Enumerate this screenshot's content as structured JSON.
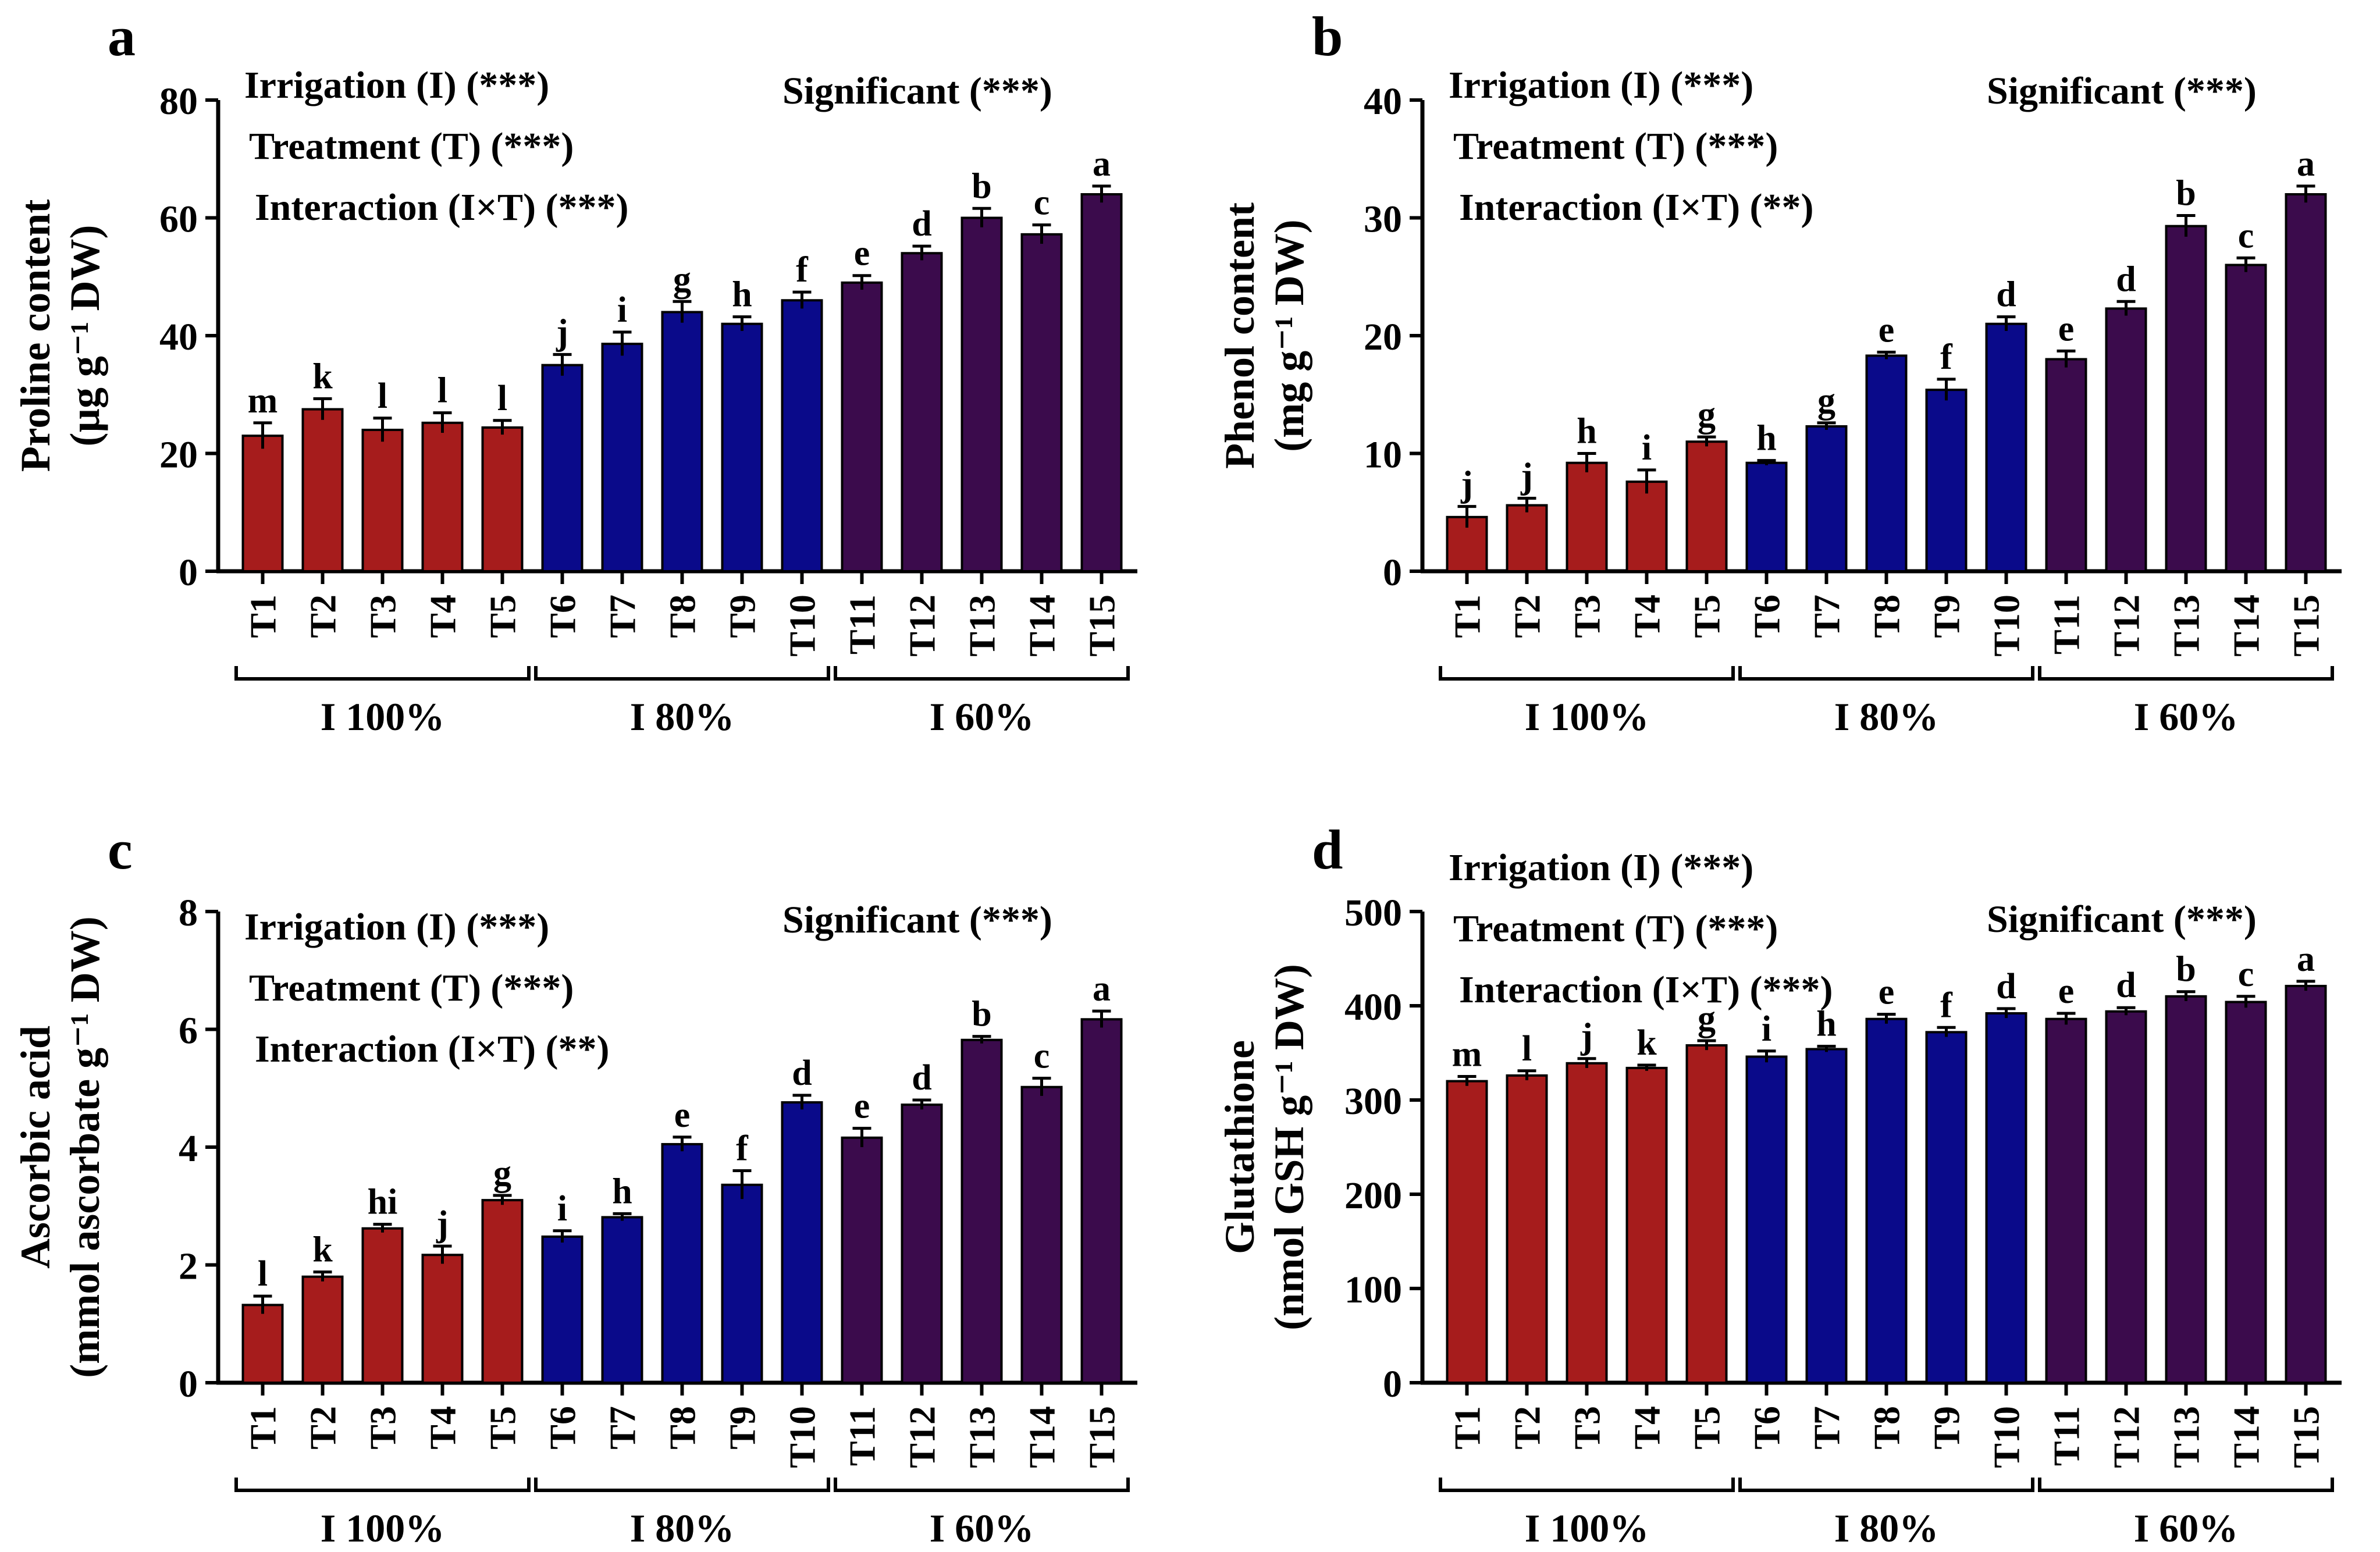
{
  "colors": {
    "red": "#A61C1C",
    "blue": "#0A0A8A",
    "purple": "#3B0B4C",
    "axis": "#000000"
  },
  "chart_data": [
    {
      "panel_label": "a",
      "type": "bar",
      "ylabel_line1": "Proline content",
      "ylabel_line2": "(µg g⁻¹ DW)",
      "ylim": [
        0,
        80
      ],
      "yticks": [
        0,
        20,
        40,
        60,
        80
      ],
      "categories": [
        "T1",
        "T2",
        "T3",
        "T4",
        "T5",
        "T6",
        "T7",
        "T8",
        "T9",
        "T10",
        "T11",
        "T12",
        "T13",
        "T14",
        "T15"
      ],
      "values": [
        23,
        27.5,
        24,
        25.2,
        24.4,
        35,
        38.6,
        44,
        42,
        46,
        49,
        54,
        60,
        57.2,
        64
      ],
      "errors": [
        2.2,
        1.8,
        2.0,
        1.7,
        1.2,
        1.8,
        2.0,
        1.8,
        1.2,
        1.4,
        1.2,
        1.2,
        1.6,
        1.6,
        1.4
      ],
      "letters": [
        "m",
        "k",
        "l",
        "l",
        "l",
        "j",
        "i",
        "g",
        "h",
        "f",
        "e",
        "d",
        "b",
        "c",
        "a"
      ],
      "groups": [
        {
          "label": "I 100%",
          "start": 0,
          "end": 4,
          "color_key": "red"
        },
        {
          "label": "I 80%",
          "start": 5,
          "end": 9,
          "color_key": "blue"
        },
        {
          "label": "I 60%",
          "start": 10,
          "end": 14,
          "color_key": "purple"
        }
      ],
      "annotations_left": [
        "Irrigation (I) (***)",
        "Treatment (T) (***)",
        "Interaction (I×T) (***)"
      ],
      "annotation_right": "Significant (***)"
    },
    {
      "panel_label": "b",
      "type": "bar",
      "ylabel_line1": "Phenol content",
      "ylabel_line2": "(mg g⁻¹ DW)",
      "ylim": [
        0,
        40
      ],
      "yticks": [
        0,
        10,
        20,
        30,
        40
      ],
      "categories": [
        "T1",
        "T2",
        "T3",
        "T4",
        "T5",
        "T6",
        "T7",
        "T8",
        "T9",
        "T10",
        "T11",
        "T12",
        "T13",
        "T14",
        "T15"
      ],
      "values": [
        4.6,
        5.6,
        9.2,
        7.6,
        11,
        9.2,
        12.3,
        18.3,
        15.4,
        21,
        18,
        22.3,
        29.3,
        26,
        32
      ],
      "errors": [
        0.9,
        0.6,
        0.8,
        1.0,
        0.4,
        0.2,
        0.3,
        0.3,
        0.9,
        0.6,
        0.7,
        0.6,
        0.9,
        0.6,
        0.7
      ],
      "letters": [
        "j",
        "j",
        "h",
        "i",
        "g",
        "h",
        "g",
        "e",
        "f",
        "d",
        "e",
        "d",
        "b",
        "c",
        "a"
      ],
      "groups": [
        {
          "label": "I 100%",
          "start": 0,
          "end": 4,
          "color_key": "red"
        },
        {
          "label": "I 80%",
          "start": 5,
          "end": 9,
          "color_key": "blue"
        },
        {
          "label": "I 60%",
          "start": 10,
          "end": 14,
          "color_key": "purple"
        }
      ],
      "annotations_left": [
        "Irrigation (I) (***)",
        "Treatment (T) (***)",
        "Interaction (I×T) (**)"
      ],
      "annotation_right": "Significant (***)"
    },
    {
      "panel_label": "c",
      "type": "bar",
      "ylabel_line1": "Ascorbic acid",
      "ylabel_line2": "(mmol ascorbate g⁻¹ DW)",
      "ylim": [
        0,
        8
      ],
      "yticks": [
        0,
        2,
        4,
        6,
        8
      ],
      "categories": [
        "T1",
        "T2",
        "T3",
        "T4",
        "T5",
        "T6",
        "T7",
        "T8",
        "T9",
        "T10",
        "T11",
        "T12",
        "T13",
        "T14",
        "T15"
      ],
      "values": [
        1.32,
        1.8,
        2.62,
        2.17,
        3.1,
        2.48,
        2.81,
        4.05,
        3.36,
        4.76,
        4.16,
        4.72,
        5.82,
        5.02,
        6.17
      ],
      "errors": [
        0.15,
        0.08,
        0.07,
        0.15,
        0.08,
        0.1,
        0.06,
        0.12,
        0.24,
        0.12,
        0.16,
        0.08,
        0.06,
        0.15,
        0.14
      ],
      "letters": [
        "l",
        "k",
        "hi",
        "j",
        "g",
        "i",
        "h",
        "e",
        "f",
        "d",
        "e",
        "d",
        "b",
        "c",
        "a"
      ],
      "groups": [
        {
          "label": "I 100%",
          "start": 0,
          "end": 4,
          "color_key": "red"
        },
        {
          "label": "I 80%",
          "start": 5,
          "end": 9,
          "color_key": "blue"
        },
        {
          "label": "I 60%",
          "start": 10,
          "end": 14,
          "color_key": "purple"
        }
      ],
      "annotations_left": [
        "Irrigation (I) (***)",
        "Treatment (T) (***)",
        "Interaction (I×T) (**)"
      ],
      "annotation_right": "Significant (***)"
    },
    {
      "panel_label": "d",
      "type": "bar",
      "ylabel_line1": "Glutathione",
      "ylabel_line2": "(nmol  GSH g⁻¹ DW)",
      "ylim": [
        0,
        500
      ],
      "yticks": [
        0,
        100,
        200,
        300,
        400,
        500
      ],
      "categories": [
        "T1",
        "T2",
        "T3",
        "T4",
        "T5",
        "T6",
        "T7",
        "T8",
        "T9",
        "T10",
        "T11",
        "T12",
        "T13",
        "T14",
        "T15"
      ],
      "values": [
        320,
        326,
        339,
        334,
        358,
        346,
        354,
        386,
        372,
        392,
        386,
        394,
        410,
        404,
        421
      ],
      "errors": [
        5,
        5,
        5,
        3,
        5,
        6,
        3,
        5,
        5,
        5,
        6,
        4,
        5,
        6,
        5
      ],
      "letters": [
        "m",
        "l",
        "j",
        "k",
        "g",
        "i",
        "h",
        "e",
        "f",
        "d",
        "e",
        "d",
        "b",
        "c",
        "a"
      ],
      "groups": [
        {
          "label": "I 100%",
          "start": 0,
          "end": 4,
          "color_key": "red"
        },
        {
          "label": "I 80%",
          "start": 5,
          "end": 9,
          "color_key": "blue"
        },
        {
          "label": "I 60%",
          "start": 10,
          "end": 14,
          "color_key": "purple"
        }
      ],
      "annotations_left": [
        "Irrigation (I) (***)",
        "Treatment (T) (***)",
        "Interaction (I×T) (***)"
      ],
      "annotation_right": "Significant (***)"
    }
  ]
}
